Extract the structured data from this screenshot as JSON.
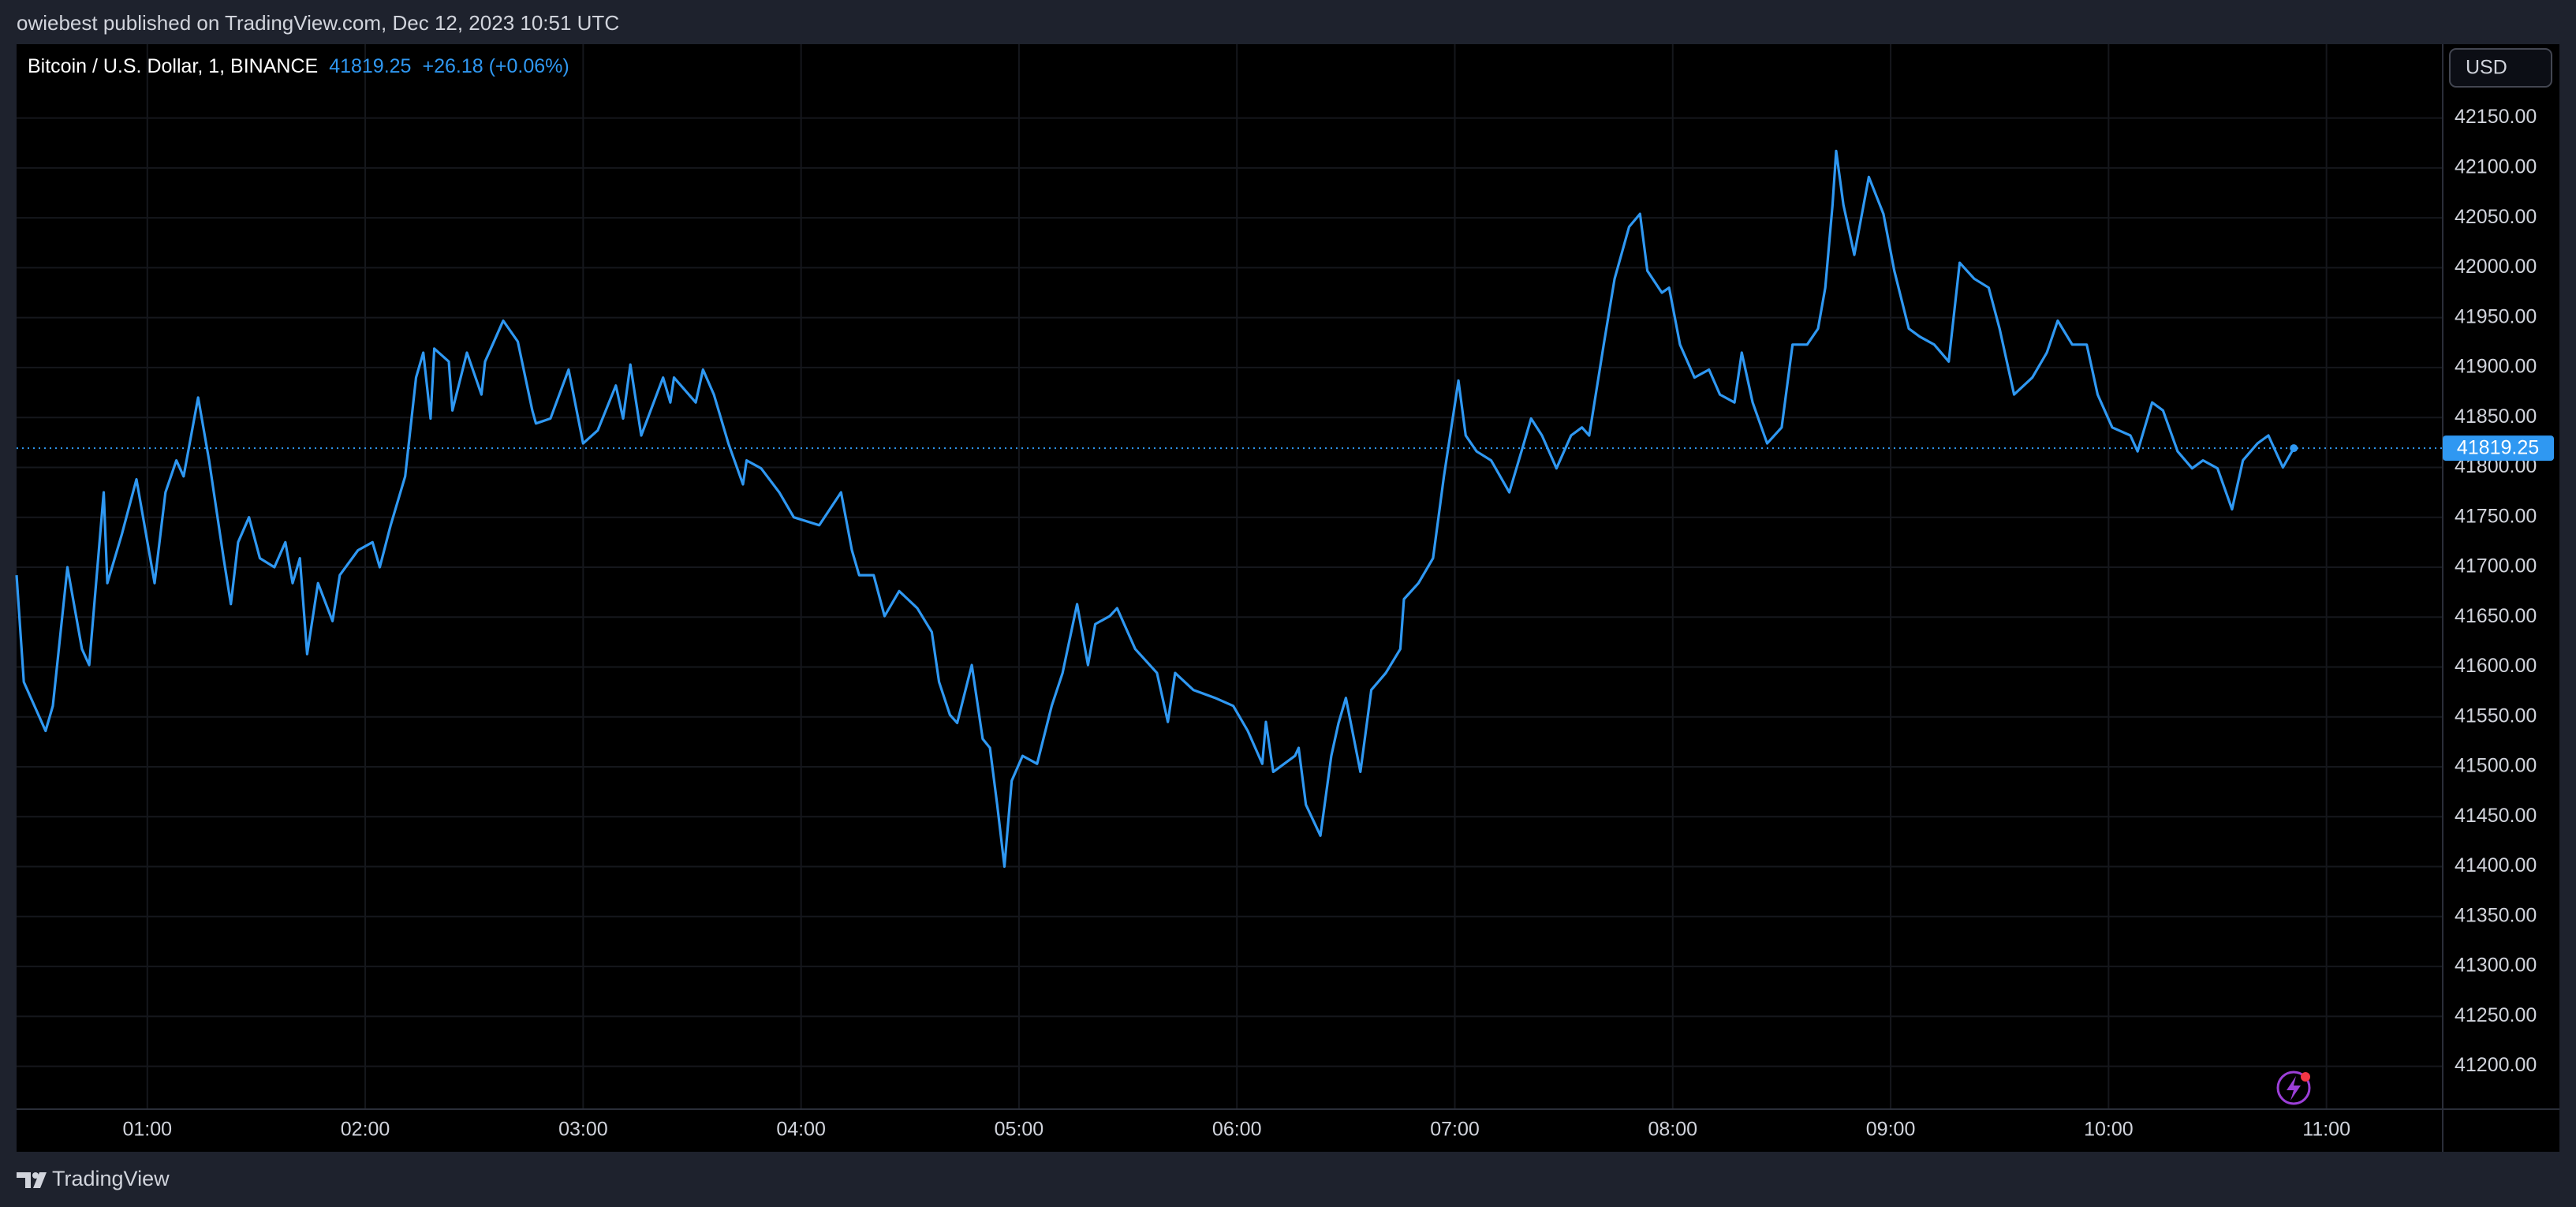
{
  "header": {
    "publisher_line": "owiebest published on TradingView.com, Dec 12, 2023 10:51 UTC"
  },
  "chart_data": {
    "type": "line",
    "title": "Bitcoin / U.S. Dollar, 1, BINANCE",
    "change": "+26.18 (+0.06%)",
    "currency": "USD",
    "color": "#2f98f2",
    "grid": true,
    "price_line": true,
    "xlim": [
      "00:24",
      "11:32"
    ],
    "xticks": [
      "01:00",
      "02:00",
      "03:00",
      "04:00",
      "05:00",
      "06:00",
      "07:00",
      "08:00",
      "09:00",
      "10:00",
      "11:00"
    ],
    "ylim": [
      41157,
      42224
    ],
    "yticks": [
      {
        "value": 41200,
        "label": "41200.00"
      },
      {
        "value": 41250,
        "label": "41250.00"
      },
      {
        "value": 41300,
        "label": "41300.00"
      },
      {
        "value": 41350,
        "label": "41350.00"
      },
      {
        "value": 41400,
        "label": "41400.00"
      },
      {
        "value": 41450,
        "label": "41450.00"
      },
      {
        "value": 41500,
        "label": "41500.00"
      },
      {
        "value": 41550,
        "label": "41550.00"
      },
      {
        "value": 41600,
        "label": "41600.00"
      },
      {
        "value": 41650,
        "label": "41650.00"
      },
      {
        "value": 41700,
        "label": "41700.00"
      },
      {
        "value": 41750,
        "label": "41750.00"
      },
      {
        "value": 41800,
        "label": "41800.00"
      },
      {
        "value": 41850,
        "label": "41850.00"
      },
      {
        "value": 41900,
        "label": "41900.00"
      },
      {
        "value": 41950,
        "label": "41950.00"
      },
      {
        "value": 42000,
        "label": "42000.00"
      },
      {
        "value": 42050,
        "label": "42050.00"
      },
      {
        "value": 42100,
        "label": "42100.00"
      },
      {
        "value": 42150,
        "label": "42150.00"
      }
    ],
    "x": [
      "00:24",
      "00:26",
      "00:32",
      "00:34",
      "00:38",
      "00:42",
      "00:44",
      "00:48",
      "00:49",
      "00:53",
      "00:57",
      "01:02",
      "01:05",
      "01:08",
      "01:10",
      "01:14",
      "01:17",
      "01:21",
      "01:23",
      "01:25",
      "01:28",
      "01:31",
      "01:35",
      "01:38",
      "01:40",
      "01:42",
      "01:44",
      "01:47",
      "01:51",
      "01:53",
      "01:58",
      "02:02",
      "02:04",
      "02:07",
      "02:11",
      "02:14",
      "02:16",
      "02:18",
      "02:19",
      "02:23",
      "02:24",
      "02:28",
      "02:32",
      "02:33",
      "02:38",
      "02:42",
      "02:46",
      "02:47",
      "02:51",
      "02:56",
      "03:00",
      "03:04",
      "03:09",
      "03:11",
      "03:13",
      "03:16",
      "03:22",
      "03:24",
      "03:25",
      "03:31",
      "03:33",
      "03:36",
      "03:40",
      "03:44",
      "03:45",
      "03:49",
      "03:54",
      "03:58",
      "04:05",
      "04:11",
      "04:14",
      "04:16",
      "04:20",
      "04:23",
      "04:27",
      "04:32",
      "04:36",
      "04:38",
      "04:41",
      "04:43",
      "04:47",
      "04:50",
      "04:52",
      "04:54",
      "04:56",
      "04:58",
      "05:01",
      "05:05",
      "05:09",
      "05:12",
      "05:16",
      "05:19",
      "05:21",
      "05:25",
      "05:27",
      "05:32",
      "05:38",
      "05:41",
      "05:43",
      "05:48",
      "05:54",
      "05:59",
      "06:03",
      "06:07",
      "06:08",
      "06:10",
      "06:16",
      "06:17",
      "06:19",
      "06:23",
      "06:26",
      "06:28",
      "06:30",
      "06:34",
      "06:37",
      "06:41",
      "06:45",
      "06:46",
      "06:50",
      "06:54",
      "06:57",
      "07:01",
      "07:03",
      "07:06",
      "07:10",
      "07:15",
      "07:19",
      "07:21",
      "07:24",
      "07:28",
      "07:32",
      "07:35",
      "07:37",
      "07:41",
      "07:44",
      "07:48",
      "07:51",
      "07:53",
      "07:57",
      "07:59",
      "08:02",
      "08:06",
      "08:10",
      "08:13",
      "08:17",
      "08:19",
      "08:22",
      "08:26",
      "08:30",
      "08:33",
      "08:37",
      "08:40",
      "08:42",
      "08:44",
      "08:45",
      "08:47",
      "08:50",
      "08:54",
      "08:58",
      "09:01",
      "09:05",
      "09:08",
      "09:12",
      "09:16",
      "09:19",
      "09:23",
      "09:27",
      "09:30",
      "09:34",
      "09:39",
      "09:43",
      "09:46",
      "09:50",
      "09:54",
      "09:57",
      "10:01",
      "10:06",
      "10:08",
      "10:12",
      "10:15",
      "10:19",
      "10:23",
      "10:26",
      "10:30",
      "10:34",
      "10:37",
      "10:41",
      "10:44",
      "10:48",
      "10:51"
    ],
    "values": [
      41692,
      41585,
      41536,
      41561,
      41700,
      41618,
      41602,
      41775,
      41684,
      41733,
      41788,
      41684,
      41775,
      41807,
      41791,
      41870,
      41807,
      41709,
      41663,
      41725,
      41750,
      41709,
      41700,
      41725,
      41684,
      41709,
      41613,
      41684,
      41646,
      41692,
      41717,
      41725,
      41700,
      41742,
      41791,
      41890,
      41915,
      41849,
      41919,
      41906,
      41857,
      41915,
      41873,
      41906,
      41947,
      41926,
      41857,
      41844,
      41849,
      41898,
      41824,
      41837,
      41882,
      41849,
      41903,
      41832,
      41890,
      41865,
      41890,
      41865,
      41898,
      41873,
      41824,
      41783,
      41807,
      41799,
      41775,
      41750,
      41742,
      41775,
      41717,
      41692,
      41692,
      41651,
      41676,
      41659,
      41635,
      41585,
      41552,
      41544,
      41602,
      41528,
      41519,
      41462,
      41400,
      41486,
      41511,
      41503,
      41561,
      41594,
      41663,
      41602,
      41643,
      41651,
      41659,
      41618,
      41594,
      41545,
      41594,
      41577,
      41569,
      41561,
      41536,
      41503,
      41545,
      41495,
      41511,
      41519,
      41462,
      41431,
      41511,
      41544,
      41569,
      41495,
      41577,
      41594,
      41618,
      41668,
      41684,
      41709,
      41791,
      41887,
      41832,
      41816,
      41807,
      41775,
      41824,
      41849,
      41832,
      41799,
      41832,
      41840,
      41832,
      41923,
      41989,
      42041,
      42054,
      41997,
      41975,
      41980,
      41923,
      41890,
      41898,
      41873,
      41865,
      41915,
      41865,
      41824,
      41840,
      41923,
      41923,
      41939,
      41980,
      42063,
      42117,
      42063,
      42013,
      42091,
      42054,
      41997,
      41939,
      41931,
      41923,
      41906,
      42005,
      41989,
      41980,
      41939,
      41873,
      41890,
      41915,
      41947,
      41923,
      41923,
      41873,
      41840,
      41832,
      41816,
      41865,
      41857,
      41816,
      41799,
      41807,
      41799,
      41758,
      41807,
      41824,
      41832,
      41800,
      41819.25
    ]
  },
  "footer": {
    "brand": "TradingView"
  }
}
